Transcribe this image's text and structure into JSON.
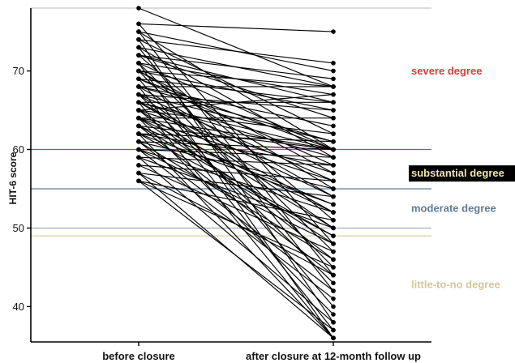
{
  "chart_data": {
    "type": "line",
    "ylabel": "HIT-6 score",
    "ylim": [
      35.5,
      78
    ],
    "yticks": [
      40,
      50,
      60,
      70
    ],
    "categories": [
      "before closure",
      "after closure at 12-month follow up"
    ],
    "grid": false,
    "reference_lines": [
      {
        "value": 78,
        "color": "#c8c8c8"
      },
      {
        "value": 60,
        "color": "#e23b3b"
      },
      {
        "value": 55,
        "color": "#5c7e93"
      },
      {
        "value": 50,
        "color": "#9aa6ad"
      },
      {
        "value": 49,
        "color": "#d9cfa6"
      }
    ],
    "zones": [
      {
        "label": "severe degree",
        "anchor": 70,
        "color": "#e03a3a",
        "highlight": false
      },
      {
        "label": "substantial degree",
        "anchor": 57,
        "color": "#f0e6a8",
        "highlight": true
      },
      {
        "label": "moderate degree",
        "anchor": 52.5,
        "color": "#5f7c92",
        "highlight": false
      },
      {
        "label": "little-to-no degree",
        "anchor": 42.8,
        "color": "#d2c79a",
        "highlight": false
      }
    ],
    "series": [
      {
        "values": [
          78,
          68
        ]
      },
      {
        "values": [
          76,
          75
        ]
      },
      {
        "values": [
          76,
          48
        ]
      },
      {
        "values": [
          75,
          70
        ]
      },
      {
        "values": [
          75,
          60
        ]
      },
      {
        "values": [
          75,
          44
        ]
      },
      {
        "values": [
          74,
          71
        ]
      },
      {
        "values": [
          74,
          62
        ]
      },
      {
        "values": [
          74,
          38
        ]
      },
      {
        "values": [
          73,
          68
        ]
      },
      {
        "values": [
          73,
          59
        ]
      },
      {
        "values": [
          73,
          42
        ]
      },
      {
        "values": [
          72,
          69
        ]
      },
      {
        "values": [
          72,
          64
        ]
      },
      {
        "values": [
          72,
          51
        ]
      },
      {
        "values": [
          71,
          67
        ]
      },
      {
        "values": [
          71,
          60
        ]
      },
      {
        "values": [
          71,
          47
        ]
      },
      {
        "values": [
          71,
          36
        ]
      },
      {
        "values": [
          70,
          68
        ]
      },
      {
        "values": [
          70,
          65
        ]
      },
      {
        "values": [
          70,
          55
        ]
      },
      {
        "values": [
          70,
          45
        ]
      },
      {
        "values": [
          69,
          66
        ]
      },
      {
        "values": [
          69,
          58
        ]
      },
      {
        "values": [
          69,
          40
        ]
      },
      {
        "values": [
          68,
          68
        ]
      },
      {
        "values": [
          68,
          63
        ]
      },
      {
        "values": [
          68,
          54
        ]
      },
      {
        "values": [
          68,
          37
        ]
      },
      {
        "values": [
          67,
          65
        ]
      },
      {
        "values": [
          67,
          61
        ]
      },
      {
        "values": [
          67,
          50
        ]
      },
      {
        "values": [
          67,
          43
        ]
      },
      {
        "values": [
          66,
          66
        ]
      },
      {
        "values": [
          66,
          59
        ]
      },
      {
        "values": [
          66,
          52
        ]
      },
      {
        "values": [
          66,
          36
        ]
      },
      {
        "values": [
          65,
          67
        ]
      },
      {
        "values": [
          65,
          62
        ]
      },
      {
        "values": [
          65,
          57
        ]
      },
      {
        "values": [
          65,
          46
        ]
      },
      {
        "values": [
          64,
          64
        ]
      },
      {
        "values": [
          64,
          56
        ]
      },
      {
        "values": [
          64,
          48
        ]
      },
      {
        "values": [
          64,
          39
        ]
      },
      {
        "values": [
          63,
          60
        ]
      },
      {
        "values": [
          63,
          53
        ]
      },
      {
        "values": [
          63,
          44
        ]
      },
      {
        "values": [
          62,
          61
        ]
      },
      {
        "values": [
          62,
          58
        ]
      },
      {
        "values": [
          62,
          49
        ]
      },
      {
        "values": [
          62,
          36
        ]
      },
      {
        "values": [
          61,
          60
        ]
      },
      {
        "values": [
          61,
          55
        ]
      },
      {
        "values": [
          61,
          46
        ]
      },
      {
        "values": [
          60,
          59
        ]
      },
      {
        "values": [
          60,
          52
        ]
      },
      {
        "values": [
          60,
          41
        ]
      },
      {
        "values": [
          59,
          58
        ]
      },
      {
        "values": [
          59,
          50
        ]
      },
      {
        "values": [
          59,
          38
        ]
      },
      {
        "values": [
          58,
          56
        ]
      },
      {
        "values": [
          58,
          47
        ]
      },
      {
        "values": [
          57,
          54
        ]
      },
      {
        "values": [
          57,
          44
        ]
      },
      {
        "values": [
          57,
          36
        ]
      },
      {
        "values": [
          56,
          51
        ]
      },
      {
        "values": [
          56,
          45
        ]
      },
      {
        "values": [
          56,
          37
        ]
      },
      {
        "values": [
          66,
          60
        ]
      },
      {
        "values": [
          64,
          60
        ]
      },
      {
        "values": [
          69,
          60
        ]
      },
      {
        "values": [
          62,
          53
        ]
      },
      {
        "values": [
          65,
          50
        ]
      },
      {
        "values": [
          67,
          56
        ]
      },
      {
        "values": [
          63,
          49
        ]
      },
      {
        "values": [
          61,
          42
        ]
      },
      {
        "values": [
          70,
          57
        ]
      },
      {
        "values": [
          72,
          66
        ]
      },
      {
        "values": [
          68,
          61
        ]
      },
      {
        "values": [
          66,
          54
        ]
      },
      {
        "values": [
          64,
          52
        ]
      },
      {
        "values": [
          60,
          48
        ]
      }
    ]
  }
}
